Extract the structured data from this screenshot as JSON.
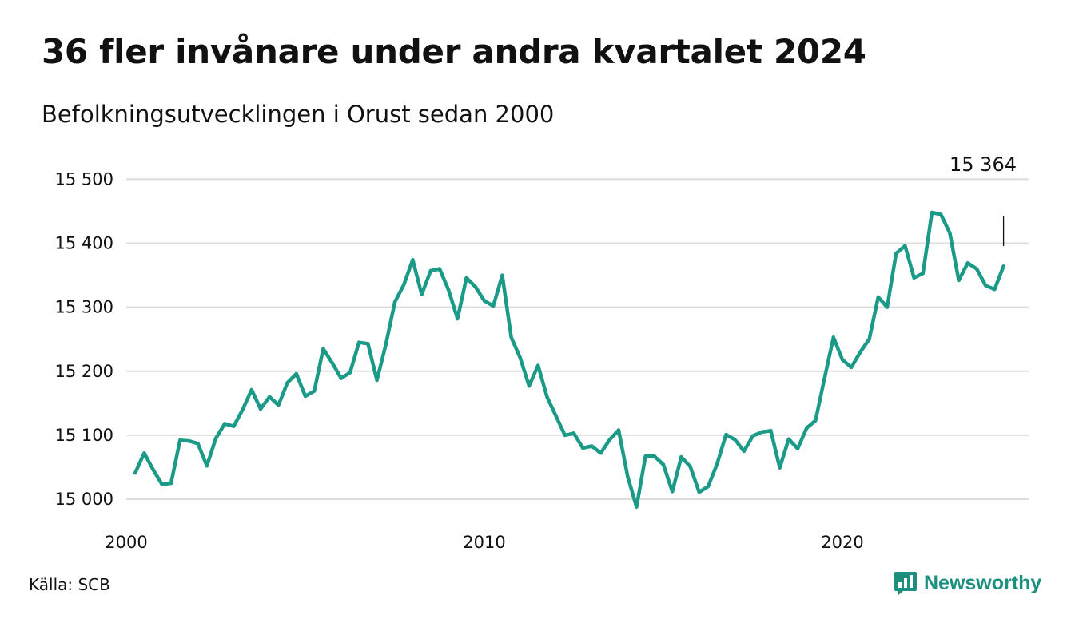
{
  "header": {
    "title": "36 fler invånare under andra kvartalet 2024",
    "subtitle": "Befolkningsutvecklingen i Orust sedan 2000"
  },
  "footer": {
    "source": "Källa: SCB",
    "brand": "Newsworthy",
    "brand_icon": "bar-chart-speech-bubble-icon"
  },
  "colors": {
    "line": "#1a9a87",
    "grid": "#dddddd",
    "brand": "#1d8f7e"
  },
  "chart_data": {
    "type": "line",
    "title": "36 fler invånare under andra kvartalet 2024",
    "subtitle": "Befolkningsutvecklingen i Orust sedan 2000",
    "xlabel": "",
    "ylabel": "",
    "xlim": [
      2000,
      2025.2
    ],
    "ylim": [
      14990,
      15520
    ],
    "y_ticks": [
      15000,
      15100,
      15200,
      15300,
      15400,
      15500
    ],
    "y_tick_labels": [
      "15 000",
      "15 100",
      "15 200",
      "15 300",
      "15 400",
      "15 500"
    ],
    "x_ticks": [
      2000,
      2010,
      2020
    ],
    "x_tick_labels": [
      "2000",
      "2010",
      "2020"
    ],
    "grid": "horizontal",
    "annotation": {
      "x": 2024.5,
      "y": 15364,
      "label": "15 364"
    },
    "series": [
      {
        "x": [
          2000.25,
          2000.5,
          2000.75,
          2001,
          2001.25,
          2001.5,
          2001.75,
          2002,
          2002.25,
          2002.5,
          2002.75,
          2003,
          2003.25,
          2003.5,
          2003.75,
          2004,
          2004.25,
          2004.5,
          2004.75,
          2005,
          2005.25,
          2005.5,
          2005.75,
          2006,
          2006.25,
          2006.5,
          2006.75,
          2007,
          2007.25,
          2007.5,
          2007.75,
          2008,
          2008.25,
          2008.5,
          2008.75,
          2009,
          2009.25,
          2009.5,
          2009.75,
          2010,
          2010.25,
          2010.5,
          2010.75,
          2011,
          2011.25,
          2011.5,
          2011.75,
          2012,
          2012.25,
          2012.5,
          2012.75,
          2013,
          2013.25,
          2013.5,
          2013.75,
          2014,
          2014.25,
          2014.5,
          2014.75,
          2015,
          2015.25,
          2015.5,
          2015.75,
          2016,
          2016.25,
          2016.5,
          2016.75,
          2017,
          2017.25,
          2017.5,
          2017.75,
          2018,
          2018.25,
          2018.5,
          2018.75,
          2019,
          2019.25,
          2019.5,
          2019.75,
          2020,
          2020.25,
          2020.5,
          2020.75,
          2021,
          2021.25,
          2021.5,
          2021.75,
          2022,
          2022.25,
          2022.5,
          2022.75,
          2023,
          2023.25,
          2023.5,
          2023.75,
          2024,
          2024.25,
          2024.5
        ],
        "values": [
          15041,
          15072,
          15046,
          15023,
          15025,
          15092,
          15091,
          15087,
          15052,
          15095,
          15118,
          15114,
          15140,
          15171,
          15141,
          15160,
          15147,
          15182,
          15196,
          15161,
          15169,
          15235,
          15213,
          15189,
          15198,
          15245,
          15243,
          15186,
          15242,
          15308,
          15335,
          15374,
          15320,
          15357,
          15360,
          15327,
          15282,
          15346,
          15332,
          15310,
          15302,
          15350,
          15253,
          15221,
          15177,
          15209,
          15160,
          15130,
          15100,
          15103,
          15080,
          15083,
          15072,
          15093,
          15108,
          15036,
          14988,
          15067,
          15067,
          15054,
          15012,
          15066,
          15051,
          15011,
          15020,
          15055,
          15101,
          15093,
          15075,
          15099,
          15105,
          15107,
          15049,
          15094,
          15079,
          15111,
          15123,
          15189,
          15253,
          15218,
          15206,
          15230,
          15250,
          15316,
          15300,
          15384,
          15396,
          15346,
          15353,
          15448,
          15445,
          15416,
          15342,
          15369,
          15360,
          15334,
          15328,
          15364
        ]
      }
    ]
  }
}
